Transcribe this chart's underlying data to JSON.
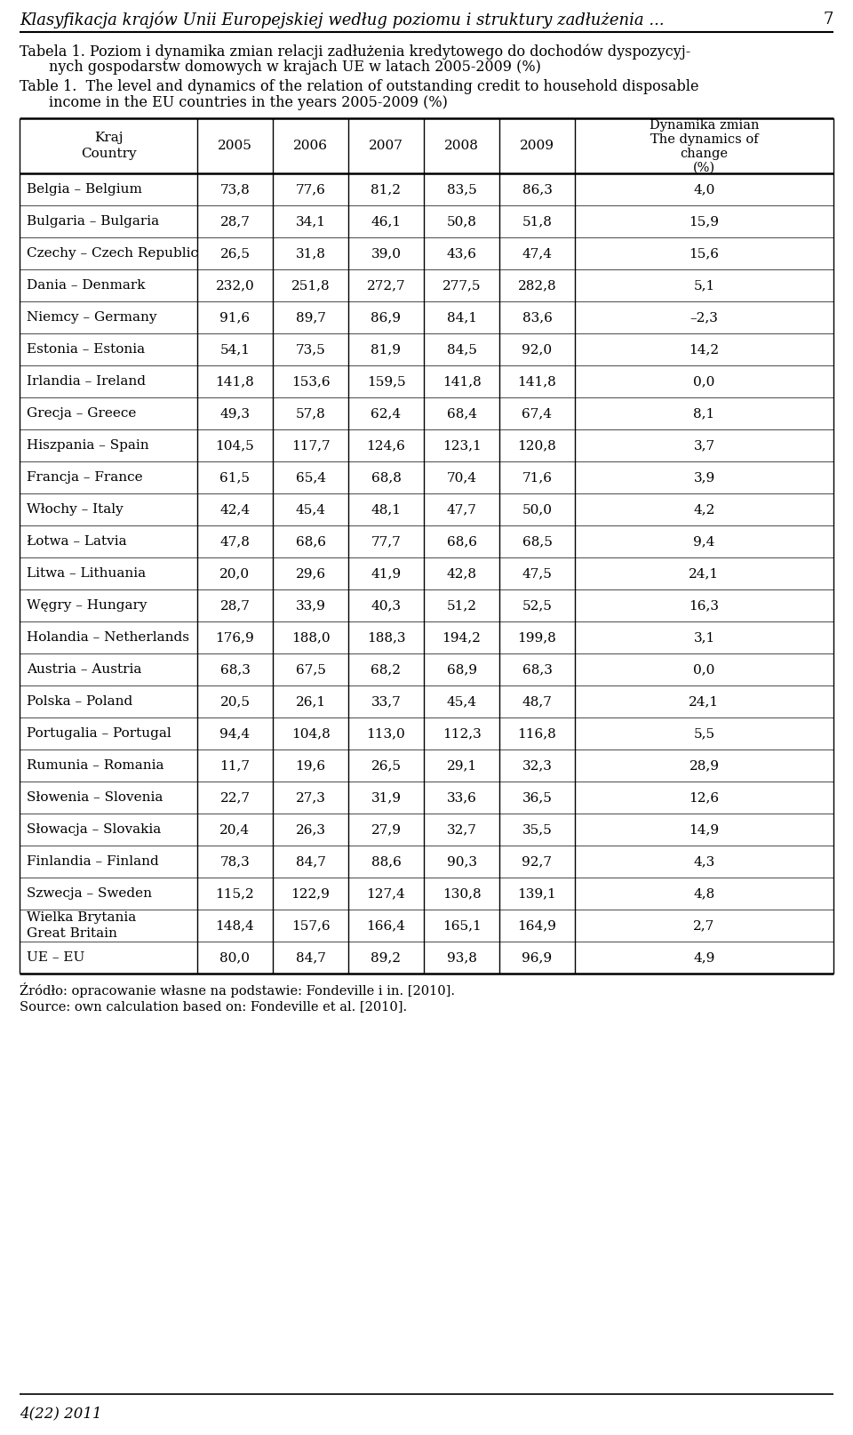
{
  "page_header": "Klasyfikacja krajów Unii Europejskiej według poziomu i struktury zadłużenia ...",
  "page_number": "7",
  "rows": [
    {
      "pl": "Belgia",
      "en": "Belgium",
      "vals": [
        73.8,
        77.6,
        81.2,
        83.5,
        86.3
      ],
      "dyn": 4.0
    },
    {
      "pl": "Bulgaria",
      "en": "Bulgaria",
      "vals": [
        28.7,
        34.1,
        46.1,
        50.8,
        51.8
      ],
      "dyn": 15.9
    },
    {
      "pl": "Czechy",
      "en": "Czech Republic",
      "vals": [
        26.5,
        31.8,
        39.0,
        43.6,
        47.4
      ],
      "dyn": 15.6
    },
    {
      "pl": "Dania",
      "en": "Denmark",
      "vals": [
        232.0,
        251.8,
        272.7,
        277.5,
        282.8
      ],
      "dyn": 5.1
    },
    {
      "pl": "Niemcy",
      "en": "Germany",
      "vals": [
        91.6,
        89.7,
        86.9,
        84.1,
        83.6
      ],
      "dyn": -2.3
    },
    {
      "pl": "Estonia",
      "en": "Estonia",
      "vals": [
        54.1,
        73.5,
        81.9,
        84.5,
        92.0
      ],
      "dyn": 14.2
    },
    {
      "pl": "Irlandia",
      "en": "Ireland",
      "vals": [
        141.8,
        153.6,
        159.5,
        141.8,
        141.8
      ],
      "dyn": 0.0
    },
    {
      "pl": "Grecja",
      "en": "Greece",
      "vals": [
        49.3,
        57.8,
        62.4,
        68.4,
        67.4
      ],
      "dyn": 8.1
    },
    {
      "pl": "Hiszpania",
      "en": "Spain",
      "vals": [
        104.5,
        117.7,
        124.6,
        123.1,
        120.8
      ],
      "dyn": 3.7
    },
    {
      "pl": "Francja",
      "en": "France",
      "vals": [
        61.5,
        65.4,
        68.8,
        70.4,
        71.6
      ],
      "dyn": 3.9
    },
    {
      "pl": "Włochy",
      "en": "Italy",
      "vals": [
        42.4,
        45.4,
        48.1,
        47.7,
        50.0
      ],
      "dyn": 4.2
    },
    {
      "pl": "Łotwa",
      "en": "Latvia",
      "vals": [
        47.8,
        68.6,
        77.7,
        68.6,
        68.5
      ],
      "dyn": 9.4
    },
    {
      "pl": "Litwa",
      "en": "Lithuania",
      "vals": [
        20.0,
        29.6,
        41.9,
        42.8,
        47.5
      ],
      "dyn": 24.1
    },
    {
      "pl": "Węgry",
      "en": "Hungary",
      "vals": [
        28.7,
        33.9,
        40.3,
        51.2,
        52.5
      ],
      "dyn": 16.3
    },
    {
      "pl": "Holandia",
      "en": "Netherlands",
      "vals": [
        176.9,
        188.0,
        188.3,
        194.2,
        199.8
      ],
      "dyn": 3.1
    },
    {
      "pl": "Austria",
      "en": "Austria",
      "vals": [
        68.3,
        67.5,
        68.2,
        68.9,
        68.3
      ],
      "dyn": 0.0
    },
    {
      "pl": "Polska",
      "en": "Poland",
      "vals": [
        20.5,
        26.1,
        33.7,
        45.4,
        48.7
      ],
      "dyn": 24.1
    },
    {
      "pl": "Portugalia",
      "en": "Portugal",
      "vals": [
        94.4,
        104.8,
        113.0,
        112.3,
        116.8
      ],
      "dyn": 5.5
    },
    {
      "pl": "Rumunia",
      "en": "Romania",
      "vals": [
        11.7,
        19.6,
        26.5,
        29.1,
        32.3
      ],
      "dyn": 28.9
    },
    {
      "pl": "Słowenia",
      "en": "Slovenia",
      "vals": [
        22.7,
        27.3,
        31.9,
        33.6,
        36.5
      ],
      "dyn": 12.6
    },
    {
      "pl": "Słowacja",
      "en": "Slovakia",
      "vals": [
        20.4,
        26.3,
        27.9,
        32.7,
        35.5
      ],
      "dyn": 14.9
    },
    {
      "pl": "Finlandia",
      "en": "Finland",
      "vals": [
        78.3,
        84.7,
        88.6,
        90.3,
        92.7
      ],
      "dyn": 4.3
    },
    {
      "pl": "Szwecja",
      "en": "Sweden",
      "vals": [
        115.2,
        122.9,
        127.4,
        130.8,
        139.1
      ],
      "dyn": 4.8
    },
    {
      "pl": "Wielka Brytania",
      "en": "Great Britain",
      "vals": [
        148.4,
        157.6,
        166.4,
        165.1,
        164.9
      ],
      "dyn": 2.7,
      "two_line": true
    },
    {
      "pl": "UE",
      "en": "EU",
      "vals": [
        80.0,
        84.7,
        89.2,
        93.8,
        96.9
      ],
      "dyn": 4.9
    }
  ],
  "footer_pl": "Źródło: opracowanie własne na podstawie: Fondeville i in. [2010].",
  "footer_en": "Source: own calculation based on: Fondeville et al. [2010].",
  "page_footer": "4(22) 2011",
  "bg_color": "#ffffff"
}
